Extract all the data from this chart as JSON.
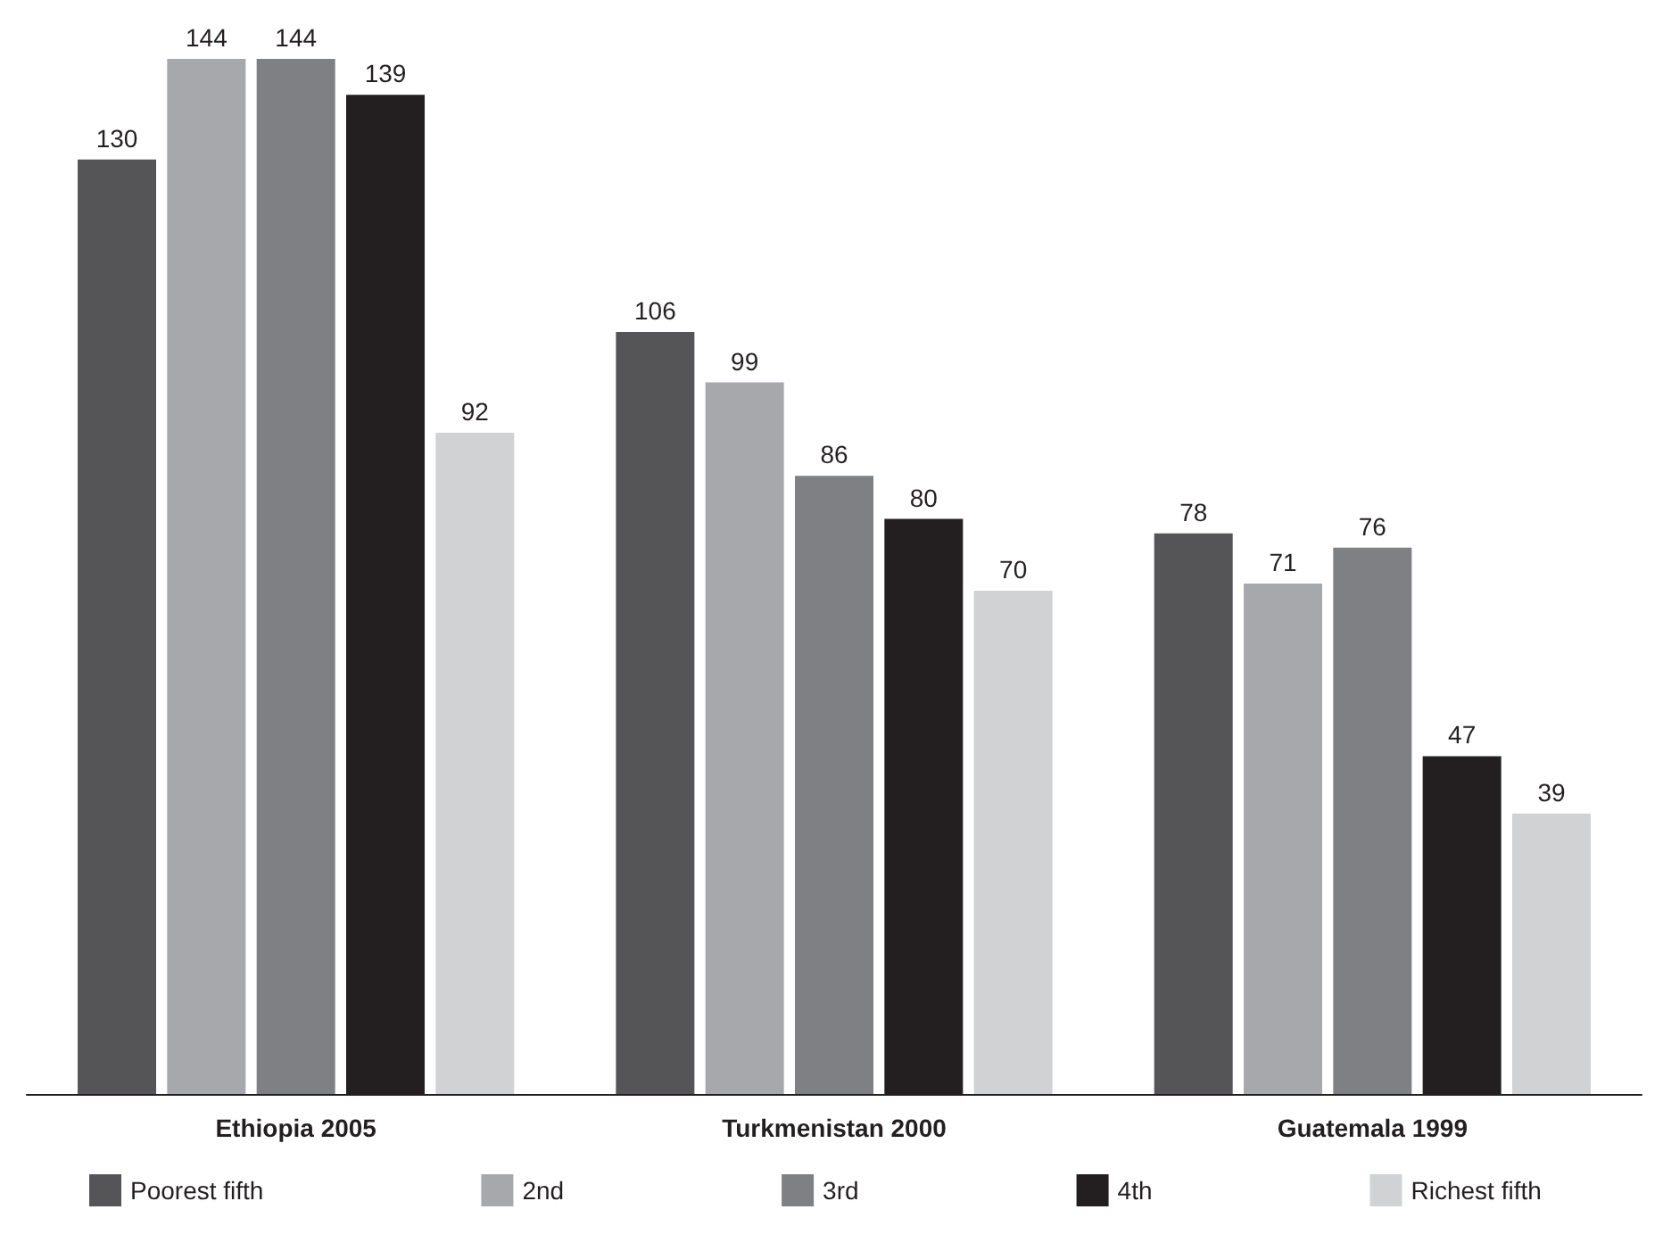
{
  "chart_data": {
    "type": "bar",
    "categories": [
      "Ethiopia 2005",
      "Turkmenistan 2000",
      "Guatemala 1999"
    ],
    "series": [
      {
        "name": "Poorest fifth",
        "color": "#555557",
        "values": [
          130,
          106,
          78
        ]
      },
      {
        "name": "2nd",
        "color": "#a7a8ab",
        "values": [
          144,
          99,
          71
        ]
      },
      {
        "name": "3rd",
        "color": "#7f8083",
        "values": [
          144,
          86,
          76
        ]
      },
      {
        "name": "4th",
        "color": "#231f20",
        "values": [
          139,
          80,
          47
        ]
      },
      {
        "name": "Richest fifth",
        "color": "#d1d2d4",
        "values": [
          92,
          70,
          39
        ]
      }
    ],
    "data_labels": true,
    "legend": "bottom",
    "grid": false,
    "tick_labels": "x"
  }
}
